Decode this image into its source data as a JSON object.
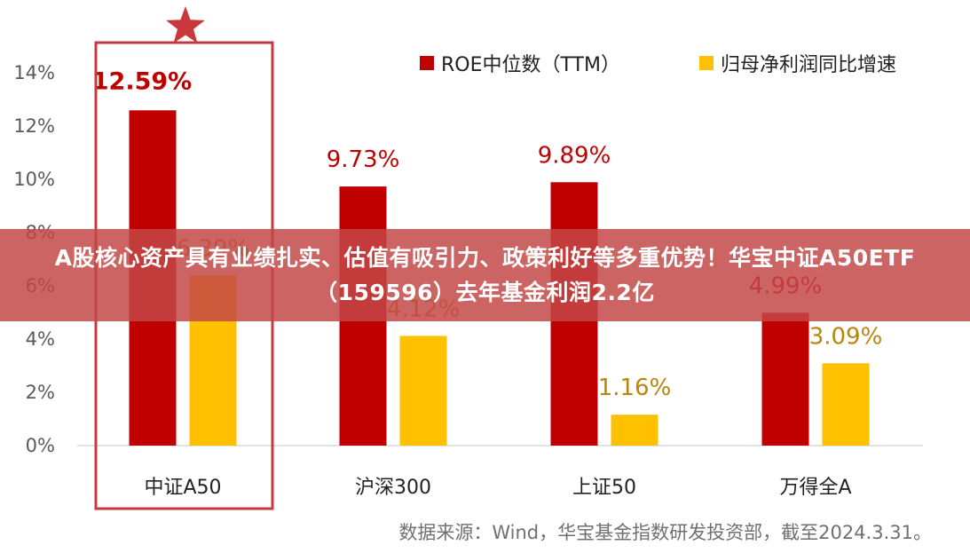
{
  "chart_data": {
    "type": "bar",
    "categories": [
      "中证A50",
      "沪深300",
      "上证50",
      "万得全A"
    ],
    "series": [
      {
        "name": "ROE中位数（TTM）",
        "color": "#c00000",
        "values": [
          12.59,
          9.73,
          9.89,
          4.99
        ]
      },
      {
        "name": "归母净利润同比增速",
        "color": "#ffc000",
        "values": [
          6.39,
          4.12,
          1.16,
          3.09
        ]
      }
    ],
    "data_labels": [
      [
        "12.59%",
        "9.73%",
        "9.89%",
        "4.99%"
      ],
      [
        "6.39%",
        "4.12%",
        "1.16%",
        "3.09%"
      ]
    ],
    "label_colors": [
      "#c00000",
      "#b8860b"
    ],
    "yticks": [
      "0%",
      "2%",
      "4%",
      "6%",
      "8%",
      "10%",
      "12%",
      "14%"
    ],
    "ylim": [
      0,
      14
    ],
    "grid": false,
    "legend_position": "top-right",
    "highlight": {
      "category": "中证A50",
      "color": "#c8383d",
      "marker": "star-icon"
    },
    "source": "数据来源：Wind，华宝基金指数研发投资部，截至2024.3.31。"
  },
  "banner": {
    "title": "A股核心资产具有业绩扎实、估值有吸引力、政策利好等多重优势！华宝中证A50ETF（159596）去年基金利润2.2亿"
  }
}
